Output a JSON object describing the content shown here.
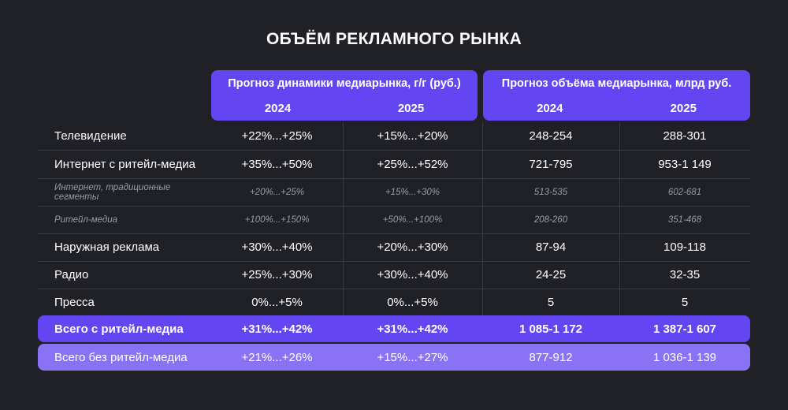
{
  "title": "ОБЪЁМ РЕКЛАМНОГО РЫНКА",
  "headers": {
    "dynamics_title": "Прогноз динамики медиарынка, г/г (руб.)",
    "volume_title": "Прогноз объёма медиарынка, млрд руб.",
    "years": [
      "2024",
      "2025"
    ]
  },
  "rows": [
    {
      "label": "Телевидение",
      "d2024": "+22%...+25%",
      "d2025": "+15%...+20%",
      "v2024": "248-254",
      "v2025": "288-301"
    },
    {
      "label": "Интернет с ритейл-медиа",
      "d2024": "+35%...+50%",
      "d2025": "+25%...+52%",
      "v2024": "721-795",
      "v2025": "953-1 149"
    },
    {
      "label": "Интернет, традиционные сегменты",
      "d2024": "+20%...+25%",
      "d2025": "+15%...+30%",
      "v2024": "513-535",
      "v2025": "602-681"
    },
    {
      "label": "Ритейл-медиа",
      "d2024": "+100%...+150%",
      "d2025": "+50%...+100%",
      "v2024": "208-260",
      "v2025": "351-468"
    },
    {
      "label": "Наружная реклама",
      "d2024": "+30%...+40%",
      "d2025": "+20%...+30%",
      "v2024": "87-94",
      "v2025": "109-118"
    },
    {
      "label": "Радио",
      "d2024": "+25%...+30%",
      "d2025": "+30%...+40%",
      "v2024": "24-25",
      "v2025": "32-35"
    },
    {
      "label": "Пресса",
      "d2024": "0%...+5%",
      "d2025": "0%...+5%",
      "v2024": "5",
      "v2025": "5"
    }
  ],
  "totals": [
    {
      "label": "Всего с ритейл-медиа",
      "d2024": "+31%...+42%",
      "d2025": "+31%...+42%",
      "v2024": "1 085-1 172",
      "v2025": "1 387-1 607"
    },
    {
      "label": "Всего без ритейл-медиа",
      "d2024": "+21%...+26%",
      "d2025": "+15%...+27%",
      "v2024": "877-912",
      "v2025": "1 036-1 139"
    }
  ],
  "colors": {
    "background": "#202027",
    "accent": "#6346f1",
    "accent_light": "#8a72f4",
    "muted_text": "#9a9aa4"
  }
}
